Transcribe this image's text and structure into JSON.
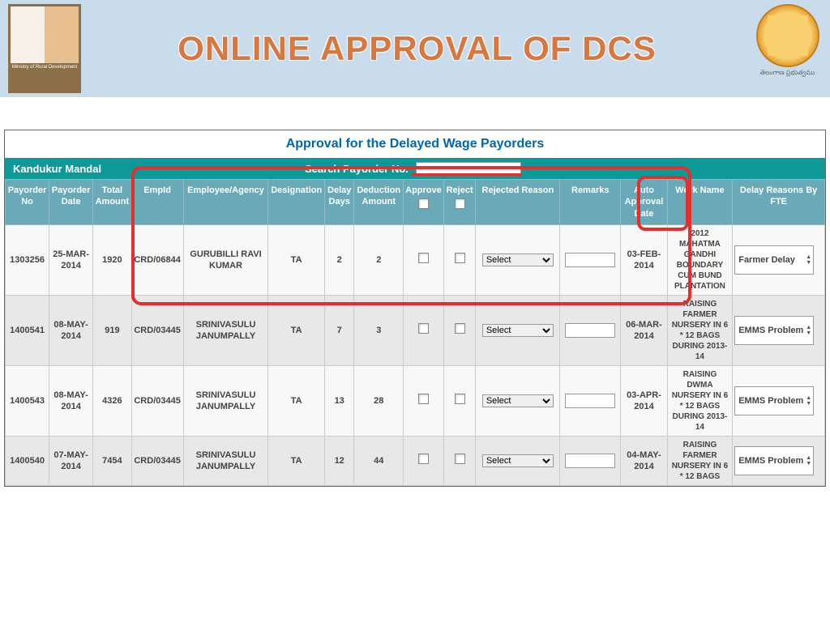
{
  "header": {
    "title": "ONLINE APPROVAL OF DCS"
  },
  "section": {
    "title": "Approval for the Delayed Wage Payorders",
    "mandal": "Kandukur Mandal",
    "search_label": "Search Payorder No."
  },
  "columns": {
    "c0": "Payorder No",
    "c1": "Payorder Date",
    "c2": "Total Amount",
    "c3": "EmpId",
    "c4": "Employee/Agency",
    "c5": "Designation",
    "c6": "Delay Days",
    "c7": "Deduction Amount",
    "c8": "Approve",
    "c9": "Reject",
    "c10": "Rejected Reason",
    "c11": "Remarks",
    "c12": "Auto Approval Date",
    "c13": "Work Name",
    "c14": "Delay Reasons By FTE"
  },
  "rows": {
    "r0": {
      "payorder_no": "1303256",
      "payorder_date": "25-MAR-2014",
      "total_amount": "1920",
      "empid": "CRD/06844",
      "employee": "GURUBILLI RAVI KUMAR",
      "designation": "TA",
      "delay_days": "2",
      "deduction": "2",
      "rej_reason": "Select",
      "auto_date": "03-FEB-2014",
      "work": "2012 MAHATMA GANDHI BOUNDARY CUM BUND PLANTATION",
      "delay_reason": "Farmer Delay"
    },
    "r1": {
      "payorder_no": "1400541",
      "payorder_date": "08-MAY-2014",
      "total_amount": "919",
      "empid": "CRD/03445",
      "employee": "SRINIVASULU JANUMPALLY",
      "designation": "TA",
      "delay_days": "7",
      "deduction": "3",
      "rej_reason": "Select",
      "auto_date": "06-MAR-2014",
      "work": "RAISING FARMER NURSERY IN 6 * 12 BAGS DURING 2013-14",
      "delay_reason": "EMMS Problem"
    },
    "r2": {
      "payorder_no": "1400543",
      "payorder_date": "08-MAY-2014",
      "total_amount": "4326",
      "empid": "CRD/03445",
      "employee": "SRINIVASULU JANUMPALLY",
      "designation": "TA",
      "delay_days": "13",
      "deduction": "28",
      "rej_reason": "Select",
      "auto_date": "03-APR-2014",
      "work": "RAISING DWMA NURSERY IN 6 * 12 BAGS DURING 2013-14",
      "delay_reason": "EMMS Problem"
    },
    "r3": {
      "payorder_no": "1400540",
      "payorder_date": "07-MAY-2014",
      "total_amount": "7454",
      "empid": "CRD/03445",
      "employee": "SRINIVASULU JANUMPALLY",
      "designation": "TA",
      "delay_days": "12",
      "deduction": "44",
      "rej_reason": "Select",
      "auto_date": "04-MAY-2014",
      "work": "RAISING FARMER NURSERY IN 6 * 12 BAGS",
      "delay_reason": "EMMS Problem"
    }
  },
  "colwidths": {
    "c0": "49",
    "c1": "49",
    "c2": "43",
    "c3": "58",
    "c4": "95",
    "c5": "63",
    "c6": "33",
    "c7": "55",
    "c8": "45",
    "c9": "36",
    "c10": "94",
    "c11": "68",
    "c12": "52",
    "c13": "73",
    "c14": "103"
  }
}
